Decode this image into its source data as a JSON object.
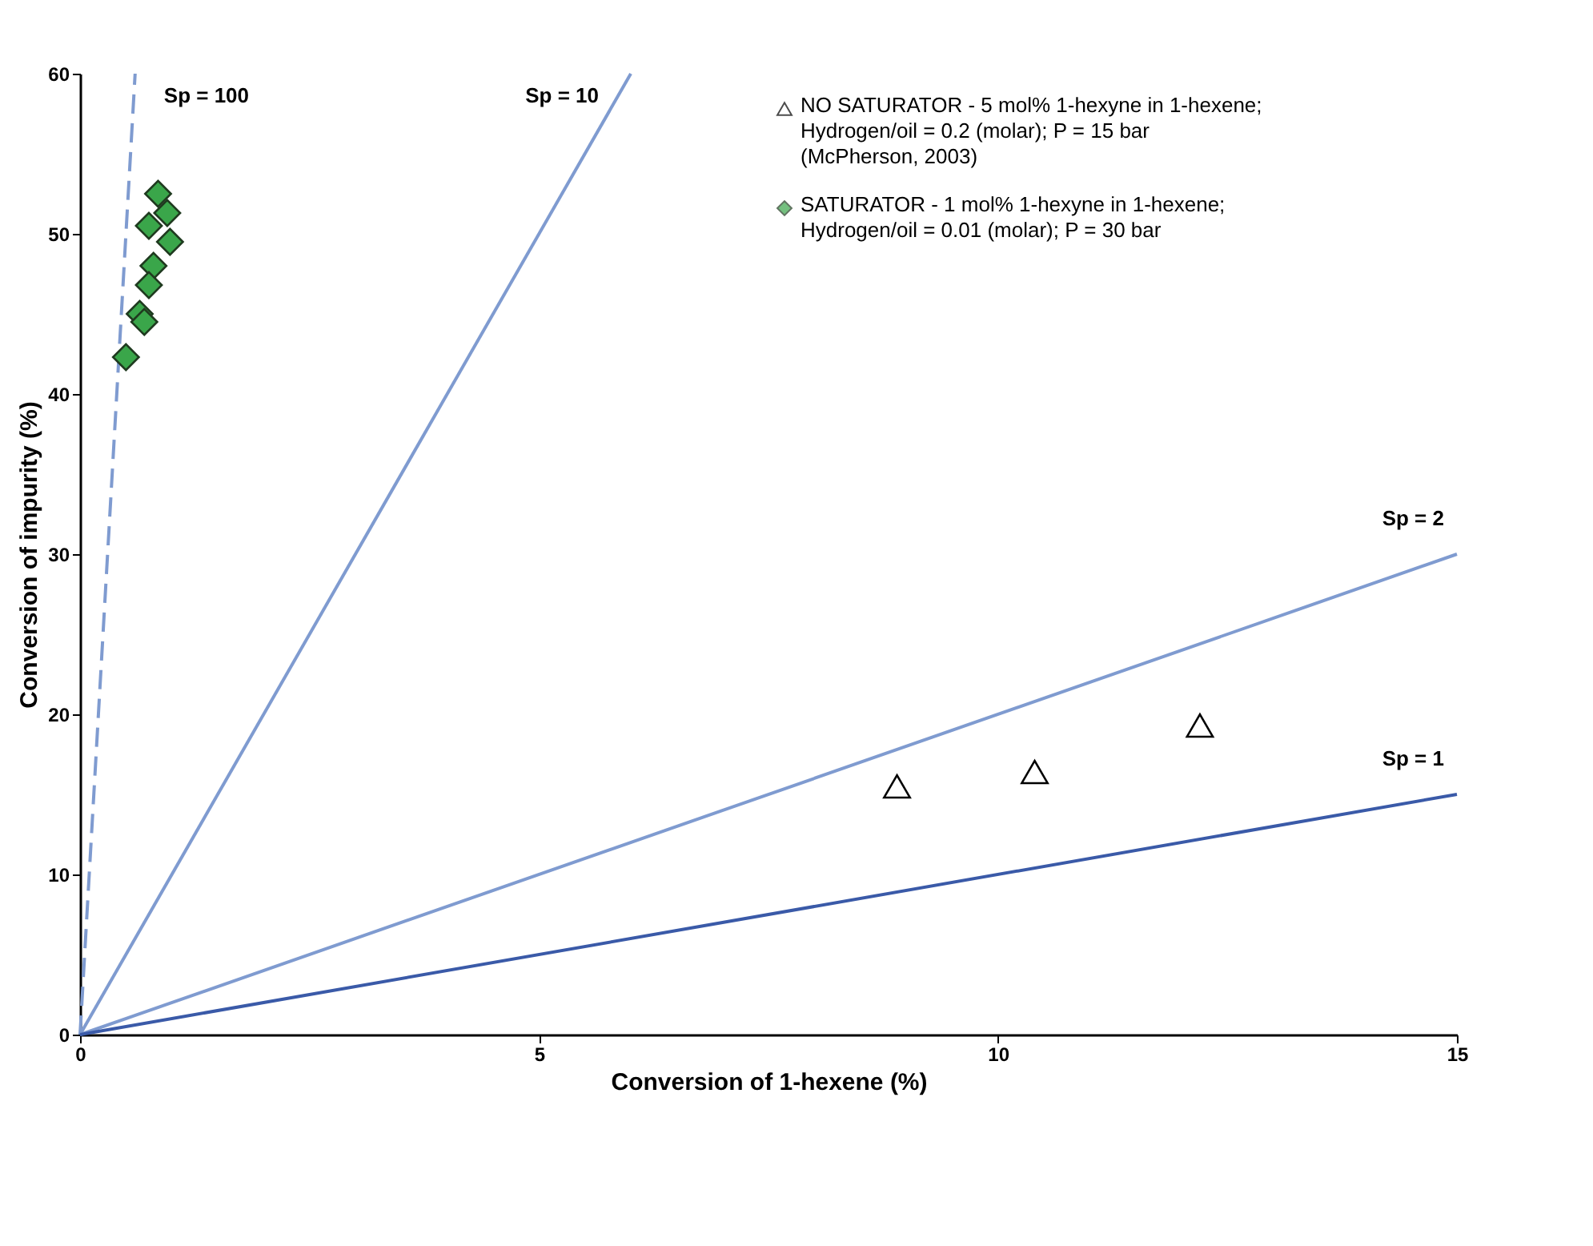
{
  "chart_data": {
    "type": "scatter",
    "xlabel": "Conversion of 1-hexene (%)",
    "ylabel": "Conversion of impurity (%)",
    "xlim": [
      0,
      15
    ],
    "ylim": [
      0,
      60
    ],
    "xticks": [
      0,
      5,
      10,
      15
    ],
    "yticks": [
      0,
      10,
      20,
      30,
      40,
      50,
      60
    ],
    "grid": false,
    "legend": "top right",
    "series": [
      {
        "type": "line",
        "name": "Sp = 100",
        "color": "#7f9bd0",
        "line_style": "dashed",
        "marker": "none",
        "x": [
          0,
          0.6
        ],
        "values": [
          0,
          60
        ]
      },
      {
        "type": "line",
        "name": "Sp = 10",
        "color": "#7f9bd0",
        "line_style": "solid",
        "marker": "none",
        "x": [
          0,
          6
        ],
        "values": [
          0,
          60
        ]
      },
      {
        "type": "line",
        "name": "Sp = 2",
        "color": "#7f9bd0",
        "line_style": "solid",
        "marker": "none",
        "x": [
          0,
          15
        ],
        "values": [
          0,
          30
        ]
      },
      {
        "type": "line",
        "name": "Sp = 1",
        "color": "#3a5aa8",
        "line_style": "solid",
        "marker": "none",
        "x": [
          0,
          15
        ],
        "values": [
          0,
          15
        ]
      },
      {
        "type": "scatter",
        "name": "NO SATURATOR - 5 mol% 1-hexyne in 1-hexene; Hydrogen/oil = 0.2 (molar); P = 15 bar (McPherson, 2003)",
        "color": "#000000",
        "marker": "triangle",
        "x": [
          8.9,
          10.4,
          12.2
        ],
        "values": [
          15.5,
          16.4,
          19.3
        ]
      },
      {
        "type": "scatter",
        "name": "SATURATOR - 1 mol% 1-hexyne in 1-hexene; Hydrogen/oil = 0.01 (molar); P = 30 bar",
        "color": "#3aa64a",
        "marker": "diamond",
        "x": [
          0.85,
          0.95,
          0.75,
          0.98,
          0.8,
          0.75,
          0.65,
          0.7,
          0.5
        ],
        "values": [
          52.5,
          51.3,
          50.5,
          49.5,
          48,
          46.8,
          45,
          44.5,
          42.3
        ]
      }
    ]
  }
}
